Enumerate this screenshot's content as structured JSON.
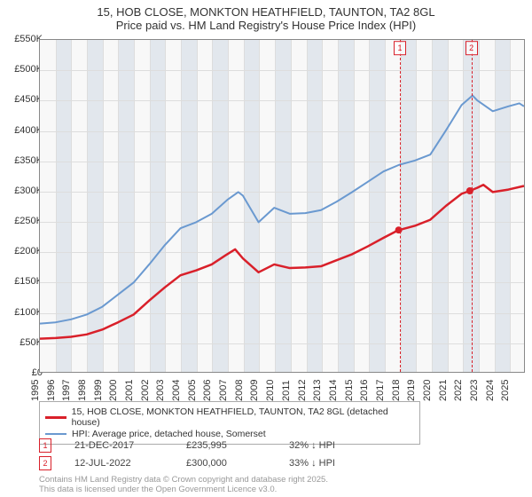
{
  "title": {
    "line1": "15, HOB CLOSE, MONKTON HEATHFIELD, TAUNTON, TA2 8GL",
    "line2": "Price paid vs. HM Land Registry's House Price Index (HPI)",
    "fontsize": 13,
    "color": "#333333"
  },
  "chart": {
    "type": "line",
    "plot_bg": "#f8f8f8",
    "alt_band_color": "rgba(200,210,225,0.45)",
    "grid_color": "#dddddd",
    "border_color": "#888888",
    "x": {
      "min": 1995,
      "max": 2026,
      "ticks": [
        1995,
        1996,
        1997,
        1998,
        1999,
        2000,
        2001,
        2002,
        2003,
        2004,
        2005,
        2006,
        2007,
        2008,
        2009,
        2010,
        2011,
        2012,
        2013,
        2014,
        2015,
        2016,
        2017,
        2018,
        2019,
        2020,
        2021,
        2022,
        2023,
        2024,
        2025
      ],
      "label_fontsize": 11,
      "label_color": "#333333"
    },
    "y": {
      "min": 0,
      "max": 550,
      "ticks": [
        0,
        50,
        100,
        150,
        200,
        250,
        300,
        350,
        400,
        450,
        500,
        550
      ],
      "tick_labels": [
        "£0",
        "£50K",
        "£100K",
        "£150K",
        "£200K",
        "£250K",
        "£300K",
        "£350K",
        "£400K",
        "£450K",
        "£500K",
        "£550K"
      ],
      "label_fontsize": 11,
      "label_color": "#333333"
    },
    "series": [
      {
        "name": "price_paid",
        "label": "15, HOB CLOSE, MONKTON HEATHFIELD, TAUNTON, TA2 8GL (detached house)",
        "color": "#d9202a",
        "line_width": 2.5,
        "data": [
          [
            1995,
            55
          ],
          [
            1996,
            56
          ],
          [
            1997,
            58
          ],
          [
            1998,
            62
          ],
          [
            1999,
            70
          ],
          [
            2000,
            82
          ],
          [
            2001,
            95
          ],
          [
            2002,
            118
          ],
          [
            2003,
            140
          ],
          [
            2004,
            160
          ],
          [
            2005,
            168
          ],
          [
            2006,
            178
          ],
          [
            2007,
            195
          ],
          [
            2007.5,
            203
          ],
          [
            2008,
            188
          ],
          [
            2009,
            165
          ],
          [
            2010,
            178
          ],
          [
            2011,
            172
          ],
          [
            2012,
            173
          ],
          [
            2013,
            175
          ],
          [
            2014,
            185
          ],
          [
            2015,
            195
          ],
          [
            2016,
            208
          ],
          [
            2017,
            222
          ],
          [
            2017.97,
            235
          ],
          [
            2018,
            235
          ],
          [
            2019,
            242
          ],
          [
            2020,
            252
          ],
          [
            2021,
            275
          ],
          [
            2022,
            295
          ],
          [
            2022.53,
            300
          ],
          [
            2023,
            305
          ],
          [
            2023.4,
            310
          ],
          [
            2024,
            298
          ],
          [
            2025,
            302
          ],
          [
            2026,
            308
          ]
        ]
      },
      {
        "name": "hpi",
        "label": "HPI: Average price, detached house, Somerset",
        "color": "#6a99d0",
        "line_width": 2,
        "data": [
          [
            1995,
            80
          ],
          [
            1996,
            82
          ],
          [
            1997,
            87
          ],
          [
            1998,
            95
          ],
          [
            1999,
            108
          ],
          [
            2000,
            128
          ],
          [
            2001,
            148
          ],
          [
            2002,
            178
          ],
          [
            2003,
            210
          ],
          [
            2004,
            238
          ],
          [
            2005,
            248
          ],
          [
            2006,
            262
          ],
          [
            2007,
            285
          ],
          [
            2007.7,
            298
          ],
          [
            2008,
            292
          ],
          [
            2009,
            248
          ],
          [
            2010,
            272
          ],
          [
            2011,
            262
          ],
          [
            2012,
            263
          ],
          [
            2013,
            268
          ],
          [
            2014,
            282
          ],
          [
            2015,
            298
          ],
          [
            2016,
            315
          ],
          [
            2017,
            332
          ],
          [
            2018,
            343
          ],
          [
            2019,
            350
          ],
          [
            2020,
            360
          ],
          [
            2021,
            400
          ],
          [
            2022,
            442
          ],
          [
            2022.7,
            458
          ],
          [
            2023,
            450
          ],
          [
            2024,
            432
          ],
          [
            2025,
            440
          ],
          [
            2025.7,
            445
          ],
          [
            2026,
            440
          ]
        ]
      }
    ],
    "sale_markers": [
      {
        "n": "1",
        "x": 2017.97,
        "y": 235,
        "color": "#d9202a"
      },
      {
        "n": "2",
        "x": 2022.53,
        "y": 300,
        "color": "#d9202a"
      }
    ]
  },
  "legend": {
    "border_color": "#aaaaaa",
    "fontsize": 10.5
  },
  "sales_table": {
    "rows": [
      {
        "n": "1",
        "date": "21-DEC-2017",
        "price": "£235,995",
        "delta": "32% ↓ HPI",
        "color": "#d9202a"
      },
      {
        "n": "2",
        "date": "12-JUL-2022",
        "price": "£300,000",
        "delta": "33% ↓ HPI",
        "color": "#d9202a"
      }
    ],
    "fontsize": 11,
    "color": "#444444"
  },
  "footer": {
    "line1": "Contains HM Land Registry data © Crown copyright and database right 2025.",
    "line2": "This data is licensed under the Open Government Licence v3.0.",
    "fontsize": 9.5,
    "color": "#999999"
  }
}
